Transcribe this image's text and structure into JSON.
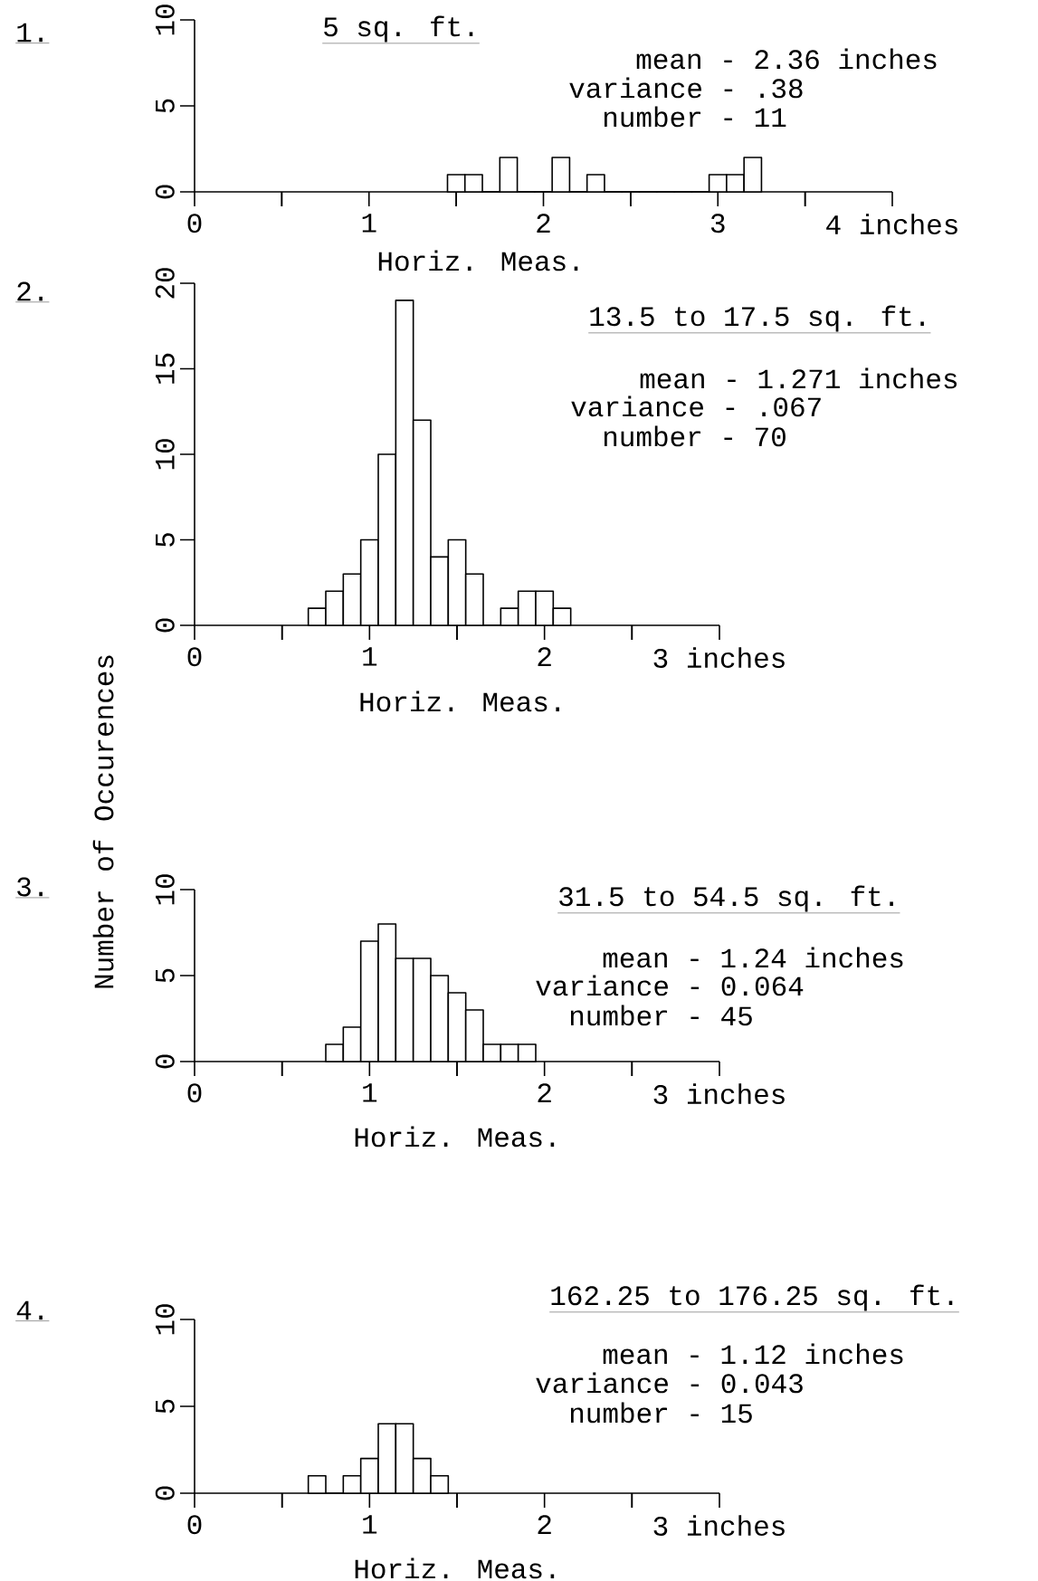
{
  "chart_data": [
    {
      "type": "histogram",
      "title": "5 sq. ft.",
      "xlabel": "Horiz. Meas.",
      "annotations": [
        "1.",
        "mean - 2.36 inches",
        "variance -  .38",
        "number - 11"
      ],
      "bins": [
        1.45,
        1.55,
        1.65,
        1.75,
        1.85,
        1.95,
        2.05,
        2.15,
        2.25,
        2.35,
        2.45,
        2.55,
        2.65,
        2.75,
        2.85,
        2.95,
        3.05,
        3.15,
        3.25
      ],
      "values": [
        1,
        1,
        0,
        2,
        0,
        0,
        2,
        0,
        1,
        0,
        0,
        0,
        0,
        0,
        0,
        1,
        1,
        2
      ],
      "color": "#000000",
      "xlim": [
        0,
        4
      ],
      "ylim": [
        0,
        10
      ],
      "xticks": [
        0,
        {
          "value": 0.5,
          "label": null
        },
        1,
        {
          "value": 1.5,
          "label": null
        },
        2,
        {
          "value": 2.5,
          "label": null
        },
        3,
        {
          "value": 3.5,
          "label": null
        },
        {
          "value": 4,
          "label": "4 inches"
        }
      ],
      "yticks": [
        0,
        5,
        10
      ]
    },
    {
      "type": "histogram",
      "title": "13.5 to 17.5 sq. ft.",
      "xlabel": "Horiz. Meas.",
      "ylabel": "Number of Occurences",
      "annotations": [
        "2.",
        "mean - 1.271 inches",
        "variance -  .067",
        "number - 70"
      ],
      "bins": [
        0.65,
        0.75,
        0.85,
        0.95,
        1.05,
        1.15,
        1.25,
        1.35,
        1.45,
        1.55,
        1.65,
        1.75,
        1.85,
        1.95,
        2.05,
        2.15
      ],
      "values": [
        1,
        2,
        3,
        5,
        10,
        19,
        12,
        4,
        5,
        3,
        0,
        1,
        2,
        2,
        1
      ],
      "color": "#000000",
      "xlim": [
        0,
        3
      ],
      "ylim": [
        0,
        20
      ],
      "xticks": [
        0,
        {
          "value": 0.5,
          "label": null
        },
        1,
        {
          "value": 1.5,
          "label": null
        },
        2,
        {
          "value": 2.5,
          "label": null
        },
        {
          "value": 3,
          "label": "3 inches"
        }
      ],
      "yticks": [
        0,
        5,
        10,
        15,
        20
      ]
    },
    {
      "type": "histogram",
      "title": "31.5 to 54.5 sq. ft.",
      "xlabel": "Horiz. Meas.",
      "annotations": [
        "3.",
        "mean - 1.24 inches",
        "variance - 0.064",
        "number - 45"
      ],
      "bins": [
        0.75,
        0.85,
        0.95,
        1.05,
        1.15,
        1.25,
        1.35,
        1.45,
        1.55,
        1.65,
        1.75,
        1.85,
        1.95
      ],
      "values": [
        1,
        2,
        7,
        8,
        6,
        6,
        5,
        4,
        3,
        1,
        1,
        1
      ],
      "color": "#000000",
      "xlim": [
        0,
        3
      ],
      "ylim": [
        0,
        10
      ],
      "xticks": [
        0,
        {
          "value": 0.5,
          "label": null
        },
        1,
        {
          "value": 1.5,
          "label": null
        },
        2,
        {
          "value": 2.5,
          "label": null
        },
        {
          "value": 3,
          "label": "3 inches"
        }
      ],
      "yticks": [
        0,
        5,
        10
      ]
    },
    {
      "type": "histogram",
      "title": "162.25 to 176.25 sq. ft.",
      "xlabel": "Horiz. Meas.",
      "annotations": [
        "4.",
        "mean - 1.12 inches",
        "variance - 0.043",
        "number - 15"
      ],
      "bins": [
        0.65,
        0.75,
        0.85,
        0.95,
        1.05,
        1.15,
        1.25,
        1.35,
        1.45
      ],
      "values": [
        1,
        0,
        1,
        2,
        4,
        4,
        2,
        1
      ],
      "color": "#000000",
      "xlim": [
        0,
        3
      ],
      "ylim": [
        0,
        10
      ],
      "xticks": [
        0,
        {
          "value": 0.5,
          "label": null
        },
        1,
        {
          "value": 1.5,
          "label": null
        },
        2,
        {
          "value": 2.5,
          "label": null
        },
        {
          "value": 3,
          "label": "3 inches"
        }
      ],
      "yticks": [
        0,
        5,
        10
      ]
    }
  ]
}
